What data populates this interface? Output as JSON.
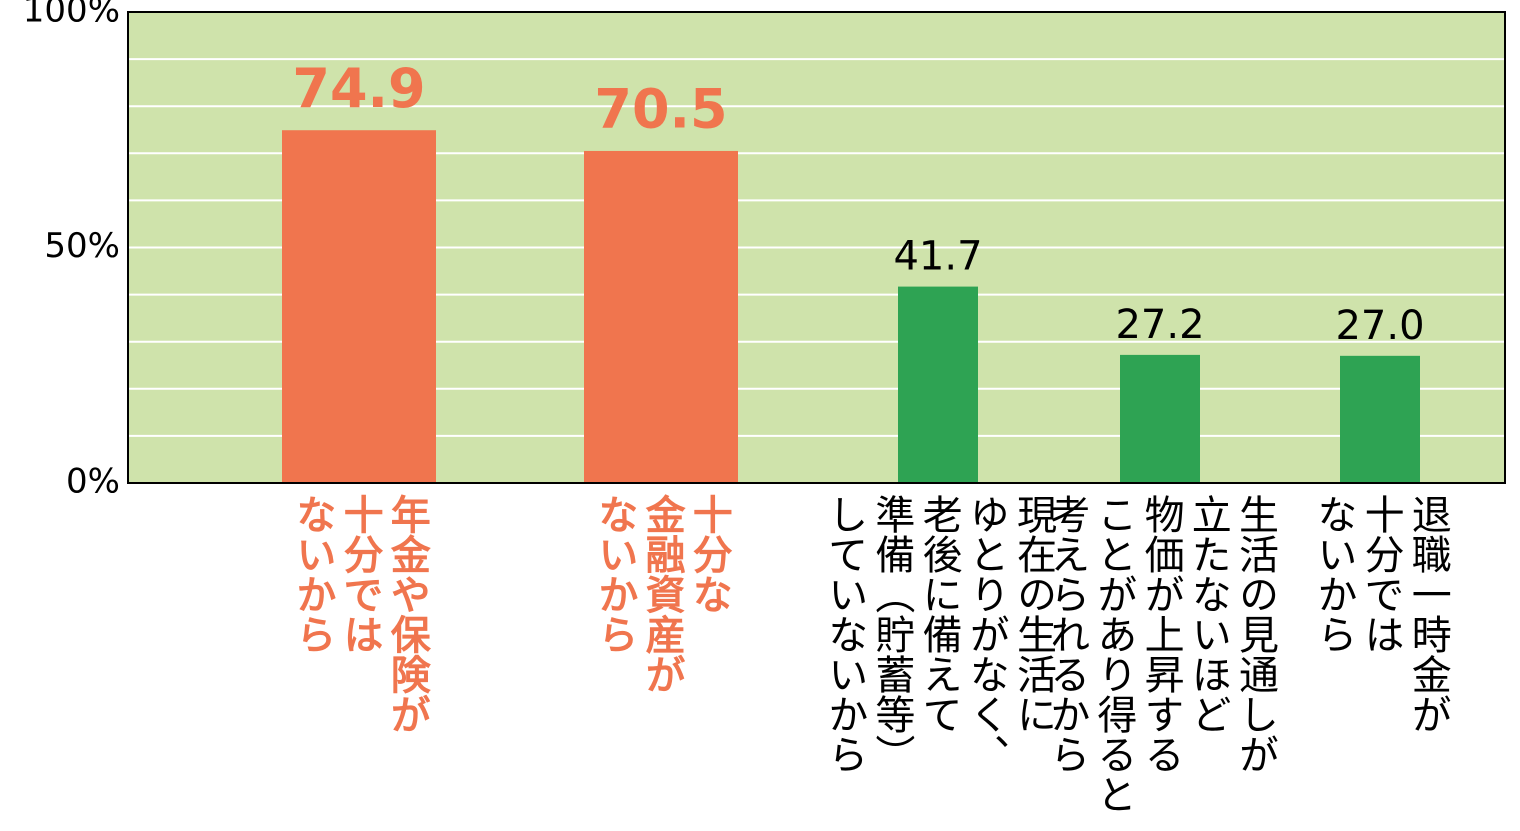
{
  "chart_data": {
    "type": "bar",
    "categories": [
      "年金や保険が\n十分では\nないから",
      "十分な\n金融資産が\nないから",
      "現在の生活に\nゆとりがなく、\n老後に備えて\n準備（貯蓄等）\nしていないから",
      "生活の見通しが\n立たないほど\n物価が上昇する\nことがあり得ると\n考えられるから",
      "退職一時金が\n十分では\nないから"
    ],
    "values": [
      74.9,
      70.5,
      41.7,
      27.2,
      27.0
    ],
    "value_labels": [
      "74.9",
      "70.5",
      "41.7",
      "27.2",
      "27.0"
    ],
    "colors": [
      "#f0754e",
      "#f0754e",
      "#2ea353",
      "#2ea353",
      "#2ea353"
    ],
    "label_colors": [
      "#f0754e",
      "#f0754e",
      "#000000",
      "#000000",
      "#000000"
    ],
    "ylim": [
      0,
      100
    ],
    "yticks": [
      {
        "value": 0,
        "label": "0%"
      },
      {
        "value": 50,
        "label": "50%"
      },
      {
        "value": 100,
        "label": "100%"
      }
    ],
    "ygrid": [
      10,
      20,
      30,
      40,
      50,
      60,
      70,
      80,
      90
    ],
    "grid": true,
    "background": "#cfe3ab"
  }
}
